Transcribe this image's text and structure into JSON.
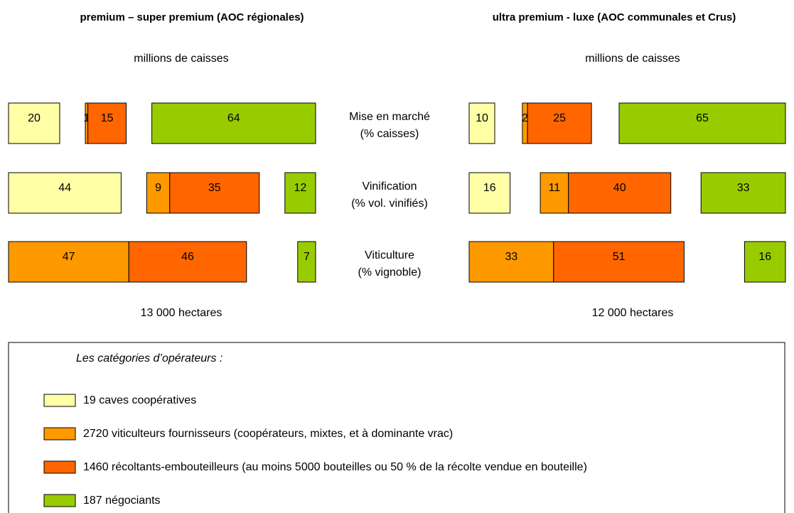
{
  "chart_data": [
    {
      "type": "bar",
      "title": "premium – super premium (AOC régionales)",
      "unit_label": "millions de caisses",
      "area_label": "13 000 hectares",
      "categories": [
        [
          "Mise en marché",
          "(% caisses)"
        ],
        [
          "Vinification",
          "(% vol. vinifiés)"
        ],
        [
          "Viticulture",
          "(% vignoble)"
        ]
      ],
      "series": [
        {
          "color": "#ffffa6",
          "values": [
            20,
            44,
            null
          ]
        },
        {
          "color": "#ff9900",
          "values": [
            1,
            9,
            47
          ]
        },
        {
          "color": "#ff6600",
          "values": [
            15,
            35,
            46
          ]
        },
        {
          "color": "#99cc00",
          "values": [
            64,
            12,
            7
          ]
        }
      ]
    },
    {
      "type": "bar",
      "title": "ultra premium - luxe (AOC communales et Crus)",
      "unit_label": "millions de caisses",
      "area_label": "12 000 hectares",
      "series": [
        {
          "color": "#ffffa6",
          "values": [
            10,
            16,
            null
          ]
        },
        {
          "color": "#ff9900",
          "values": [
            2,
            11,
            33
          ]
        },
        {
          "color": "#ff6600",
          "values": [
            25,
            40,
            51
          ]
        },
        {
          "color": "#99cc00",
          "values": [
            65,
            33,
            16
          ]
        }
      ]
    }
  ],
  "legend": {
    "title": "Les catégories d’opérateurs :",
    "items": [
      "19 caves coopératives",
      "2720 viticulteurs fournisseurs (coopérateurs, mixtes, et à dominante vrac)",
      "1460 récoltants-embouteilleurs (au moins 5000 bouteilles ou 50 % de la récolte vendue en bouteille)",
      "187 négociants"
    ]
  }
}
